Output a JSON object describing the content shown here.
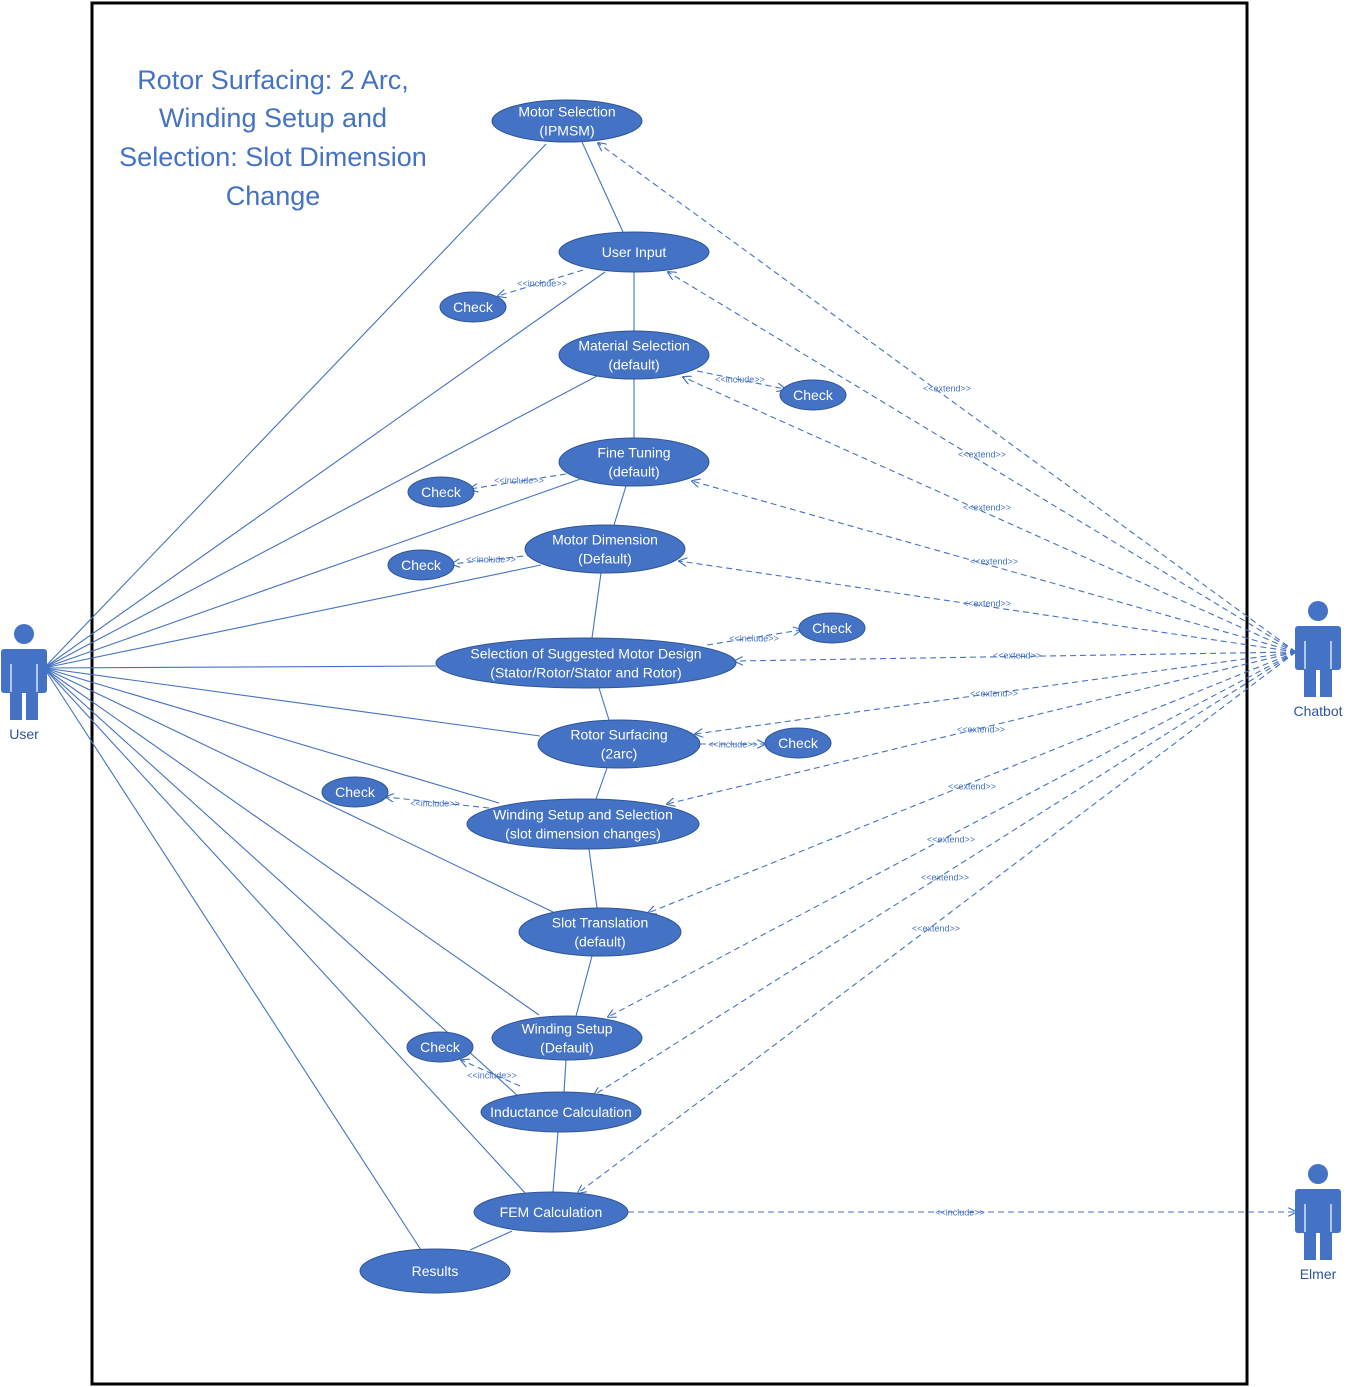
{
  "title_lines": [
    "Rotor Surfacing: 2 Arc,",
    "Winding Setup and",
    "Selection: Slot Dimension",
    "Change"
  ],
  "colors": {
    "primary": "#4472C4",
    "text_on_node": "#ffffff",
    "border": "#000000"
  },
  "actors": [
    {
      "id": "user",
      "label": "User"
    },
    {
      "id": "chatbot",
      "label": "Chatbot"
    },
    {
      "id": "elmer",
      "label": "Elmer"
    }
  ],
  "use_cases": [
    {
      "id": "motor_selection",
      "lines": [
        "Motor Selection",
        "(IPMSM)"
      ]
    },
    {
      "id": "user_input",
      "lines": [
        "User Input"
      ]
    },
    {
      "id": "material_selection",
      "lines": [
        "Material Selection",
        "(default)"
      ]
    },
    {
      "id": "fine_tuning",
      "lines": [
        "Fine Tuning",
        "(default)"
      ]
    },
    {
      "id": "motor_dimension",
      "lines": [
        "Motor Dimension",
        "(Default)"
      ]
    },
    {
      "id": "suggested_design",
      "lines": [
        "Selection of Suggested Motor Design",
        "(Stator/Rotor/Stator and Rotor)"
      ]
    },
    {
      "id": "rotor_surfacing",
      "lines": [
        "Rotor Surfacing",
        "(2arc)"
      ]
    },
    {
      "id": "winding_setup_selection",
      "lines": [
        "Winding Setup and Selection",
        "(slot dimension changes)"
      ]
    },
    {
      "id": "slot_translation",
      "lines": [
        "Slot Translation",
        "(default)"
      ]
    },
    {
      "id": "winding_setup",
      "lines": [
        "Winding Setup",
        "(Default)"
      ]
    },
    {
      "id": "inductance",
      "lines": [
        "Inductance Calculation"
      ]
    },
    {
      "id": "fem",
      "lines": [
        "FEM Calculation"
      ]
    },
    {
      "id": "results",
      "lines": [
        "Results"
      ]
    },
    {
      "id": "check_user_input",
      "lines": [
        "Check"
      ]
    },
    {
      "id": "check_material",
      "lines": [
        "Check"
      ]
    },
    {
      "id": "check_fine_tuning",
      "lines": [
        "Check"
      ]
    },
    {
      "id": "check_motor_dimension",
      "lines": [
        "Check"
      ]
    },
    {
      "id": "check_suggested",
      "lines": [
        "Check"
      ]
    },
    {
      "id": "check_rotor",
      "lines": [
        "Check"
      ]
    },
    {
      "id": "check_winding",
      "lines": [
        "Check"
      ]
    },
    {
      "id": "check_inductance",
      "lines": [
        "Check"
      ]
    }
  ],
  "relationship_labels": {
    "include": "<<include>>",
    "extend": "<<extend>>"
  },
  "includes": [
    {
      "from": "user_input",
      "to": "check_user_input"
    },
    {
      "from": "material_selection",
      "to": "check_material"
    },
    {
      "from": "fine_tuning",
      "to": "check_fine_tuning"
    },
    {
      "from": "motor_dimension",
      "to": "check_motor_dimension"
    },
    {
      "from": "suggested_design",
      "to": "check_suggested"
    },
    {
      "from": "rotor_surfacing",
      "to": "check_rotor"
    },
    {
      "from": "winding_setup_selection",
      "to": "check_winding"
    },
    {
      "from": "inductance",
      "to": "check_inductance"
    },
    {
      "from": "fem",
      "to": "elmer"
    }
  ],
  "extends": [
    {
      "from": "chatbot",
      "to": "motor_selection"
    },
    {
      "from": "chatbot",
      "to": "user_input"
    },
    {
      "from": "chatbot",
      "to": "material_selection"
    },
    {
      "from": "chatbot",
      "to": "fine_tuning"
    },
    {
      "from": "chatbot",
      "to": "motor_dimension"
    },
    {
      "from": "chatbot",
      "to": "suggested_design"
    },
    {
      "from": "chatbot",
      "to": "rotor_surfacing"
    },
    {
      "from": "chatbot",
      "to": "winding_setup_selection"
    },
    {
      "from": "chatbot",
      "to": "slot_translation"
    },
    {
      "from": "chatbot",
      "to": "winding_setup"
    },
    {
      "from": "chatbot",
      "to": "inductance"
    },
    {
      "from": "chatbot",
      "to": "fem"
    }
  ],
  "flow": [
    {
      "from": "motor_selection",
      "to": "user_input"
    },
    {
      "from": "user_input",
      "to": "material_selection"
    },
    {
      "from": "material_selection",
      "to": "fine_tuning"
    },
    {
      "from": "fine_tuning",
      "to": "motor_dimension"
    },
    {
      "from": "motor_dimension",
      "to": "suggested_design"
    },
    {
      "from": "suggested_design",
      "to": "rotor_surfacing"
    },
    {
      "from": "rotor_surfacing",
      "to": "winding_setup_selection"
    },
    {
      "from": "winding_setup_selection",
      "to": "slot_translation"
    },
    {
      "from": "slot_translation",
      "to": "winding_setup"
    },
    {
      "from": "winding_setup",
      "to": "inductance"
    },
    {
      "from": "inductance",
      "to": "fem"
    },
    {
      "from": "fem",
      "to": "results"
    }
  ],
  "associations": [
    {
      "from": "user",
      "to": "motor_selection"
    },
    {
      "from": "user",
      "to": "user_input"
    },
    {
      "from": "user",
      "to": "material_selection"
    },
    {
      "from": "user",
      "to": "fine_tuning"
    },
    {
      "from": "user",
      "to": "motor_dimension"
    },
    {
      "from": "user",
      "to": "suggested_design"
    },
    {
      "from": "user",
      "to": "rotor_surfacing"
    },
    {
      "from": "user",
      "to": "winding_setup_selection"
    },
    {
      "from": "user",
      "to": "slot_translation"
    },
    {
      "from": "user",
      "to": "winding_setup"
    },
    {
      "from": "user",
      "to": "inductance"
    },
    {
      "from": "user",
      "to": "fem"
    },
    {
      "from": "user",
      "to": "results"
    }
  ]
}
